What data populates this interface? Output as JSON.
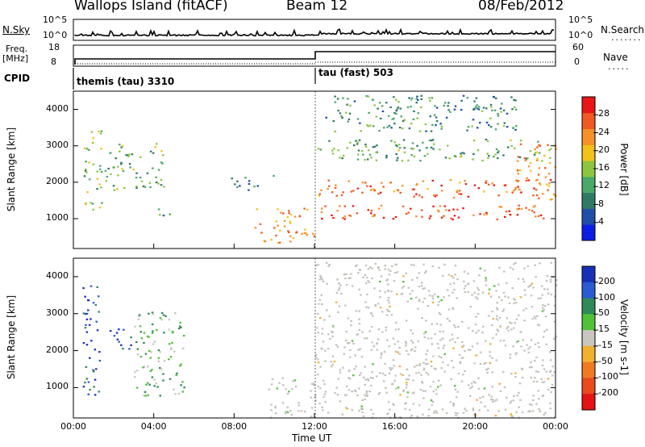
{
  "header": {
    "title": "Wallops Island (fitACF)",
    "beam": "Beam 12",
    "date": "08/Feb/2012"
  },
  "panels": {
    "nsky": {
      "label": "N.Sky",
      "ticks": [
        "10^5",
        "10^0"
      ]
    },
    "nsearch": {
      "label": "N.Search",
      "ticks": [
        "10^5",
        "10^0"
      ]
    },
    "freq": {
      "label_top": "Freq.",
      "label_unit": "[MHz]",
      "ticks": [
        "18",
        "8"
      ]
    },
    "nave": {
      "label": "Nave",
      "ticks": [
        "60",
        "0"
      ]
    },
    "cpid": {
      "label": "CPID",
      "modes": [
        "themis (tau) 3310",
        "tau (fast) 503"
      ]
    }
  },
  "colors": {
    "power_scale": [
      "#0b1ee6",
      "#1f4ea8",
      "#2e7a66",
      "#4aa86a",
      "#8cc640",
      "#f2c21a",
      "#f5912a",
      "#f05a22",
      "#e81616"
    ],
    "velocity_scale": [
      "#1a2fb8",
      "#2a5bd0",
      "#2f8a5a",
      "#4fc238",
      "#c9c6bf",
      "#f2b030",
      "#f07a22",
      "#ea4a1c",
      "#e51414"
    ],
    "ground_scatter": "#c3c2bc"
  },
  "chart_data": [
    {
      "type": "heatmap",
      "title": "Power",
      "xlabel": "Time UT",
      "ylabel": "Slant Range [km]",
      "x_ticks": [
        "00:00",
        "04:00",
        "08:00",
        "12:00",
        "16:00",
        "20:00",
        "00:00"
      ],
      "y_ticks": [
        "1000",
        "2000",
        "3000",
        "4000"
      ],
      "ylim": [
        180,
        4500
      ],
      "xlim_hours": [
        0,
        24
      ],
      "colorbar": {
        "label": "Power [dB]",
        "ticks": [
          "4",
          "8",
          "12",
          "16",
          "20",
          "24",
          "28"
        ],
        "range": [
          0,
          30
        ]
      },
      "regions": [
        {
          "t": [
            0.5,
            1.4
          ],
          "r": [
            1200,
            3500
          ],
          "level": 14
        },
        {
          "t": [
            1.5,
            4.5
          ],
          "r": [
            1800,
            3100
          ],
          "level": 13
        },
        {
          "t": [
            4.2,
            5.2
          ],
          "r": [
            1100,
            1400
          ],
          "level": 10
        },
        {
          "t": [
            7.7,
            10.0
          ],
          "r": [
            1800,
            2200
          ],
          "level": 9
        },
        {
          "t": [
            9.0,
            12.0
          ],
          "r": [
            350,
            1300
          ],
          "level": 22
        },
        {
          "t": [
            12.0,
            23.8
          ],
          "r": [
            1000,
            1400
          ],
          "level": 26
        },
        {
          "t": [
            12.0,
            23.8
          ],
          "r": [
            1600,
            2100
          ],
          "level": 24
        },
        {
          "t": [
            12.0,
            23.8
          ],
          "r": [
            2600,
            3200
          ],
          "level": 12
        },
        {
          "t": [
            12.5,
            22.0
          ],
          "r": [
            3400,
            4400
          ],
          "level": 10
        },
        {
          "t": [
            22.0,
            24.0
          ],
          "r": [
            1500,
            3100
          ],
          "level": 22
        }
      ]
    },
    {
      "type": "heatmap",
      "title": "Velocity",
      "xlabel": "Time UT",
      "ylabel": "Slant Range [km]",
      "x_ticks": [
        "00:00",
        "04:00",
        "08:00",
        "12:00",
        "16:00",
        "20:00",
        "00:00"
      ],
      "y_ticks": [
        "1000",
        "2000",
        "3000",
        "4000"
      ],
      "ylim": [
        180,
        4500
      ],
      "xlim_hours": [
        0,
        24
      ],
      "colorbar": {
        "label": "Velocity [m s-1]",
        "ticks": [
          "200",
          "100",
          "50",
          "15",
          "-15",
          "-50",
          "-100",
          "-200"
        ],
        "range": [
          -250,
          250
        ]
      },
      "regions": [
        {
          "t": [
            0.4,
            1.3
          ],
          "r": [
            800,
            3800
          ],
          "level": 180
        },
        {
          "t": [
            1.8,
            3.0
          ],
          "r": [
            2000,
            2600
          ],
          "level": 180
        },
        {
          "t": [
            3.0,
            5.5
          ],
          "r": [
            700,
            3100
          ],
          "level": 60
        },
        {
          "t": [
            9.5,
            12.0
          ],
          "r": [
            200,
            1300
          ],
          "level": 0
        },
        {
          "t": [
            12.0,
            24.0
          ],
          "r": [
            200,
            4400
          ],
          "level": 0
        }
      ]
    }
  ]
}
